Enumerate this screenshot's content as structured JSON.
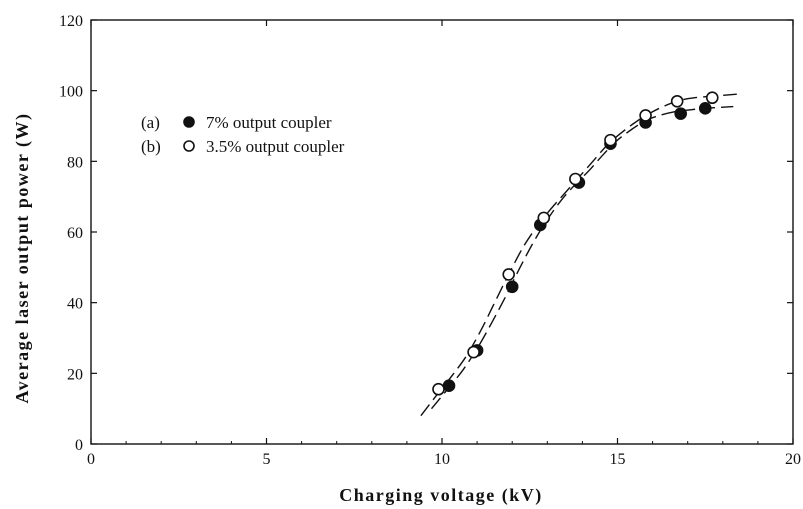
{
  "chart_data": {
    "type": "scatter",
    "xlabel": "Charging voltage (kV)",
    "ylabel": "Average laser output power (W)",
    "xlim": [
      0,
      20
    ],
    "ylim": [
      0,
      120
    ],
    "x_ticks": [
      0,
      5,
      10,
      15,
      20
    ],
    "y_ticks": [
      0,
      20,
      40,
      60,
      80,
      100,
      120
    ],
    "grid": false,
    "legend_position": "upper-left",
    "series": [
      {
        "name": "7% output coupler",
        "tag": "(a)",
        "marker": "filled-circle",
        "x": [
          10.2,
          11.0,
          12.0,
          12.8,
          13.9,
          14.8,
          15.8,
          16.8,
          17.5
        ],
        "y": [
          16.5,
          26.5,
          44.5,
          62,
          74,
          85,
          91,
          93.5,
          95
        ],
        "fit_curve": {
          "style": "dashed",
          "x": [
            9.7,
            10.2,
            10.6,
            11.0,
            11.4,
            11.8,
            12.2,
            12.6,
            13.0,
            13.4,
            13.8,
            14.2,
            14.6,
            15.0,
            15.4,
            15.8,
            16.2,
            16.6,
            17.0,
            17.5,
            18.3
          ],
          "y": [
            10,
            16,
            21,
            27,
            34,
            41.5,
            49.5,
            57,
            63.5,
            69,
            73.5,
            77.5,
            82,
            86,
            89,
            91.5,
            93,
            94,
            94.5,
            95,
            95.5
          ]
        }
      },
      {
        "name": "3.5% output coupler",
        "tag": "(b)",
        "marker": "open-circle",
        "x": [
          9.9,
          10.9,
          11.9,
          12.9,
          13.8,
          14.8,
          15.8,
          16.7,
          17.7
        ],
        "y": [
          15.5,
          26,
          48,
          64,
          75,
          86,
          93,
          97,
          98
        ],
        "fit_curve": {
          "style": "dashed",
          "x": [
            9.4,
            9.9,
            10.3,
            10.7,
            11.1,
            11.5,
            11.9,
            12.3,
            12.7,
            13.1,
            13.5,
            13.9,
            14.3,
            14.7,
            15.1,
            15.5,
            15.9,
            16.3,
            16.7,
            17.2,
            18.4
          ],
          "y": [
            8,
            14.5,
            19.5,
            25,
            32,
            40,
            48,
            55.5,
            61.5,
            66.5,
            71,
            75.5,
            80,
            84.5,
            88,
            91,
            93.5,
            95.5,
            97,
            98,
            99
          ]
        }
      }
    ]
  }
}
